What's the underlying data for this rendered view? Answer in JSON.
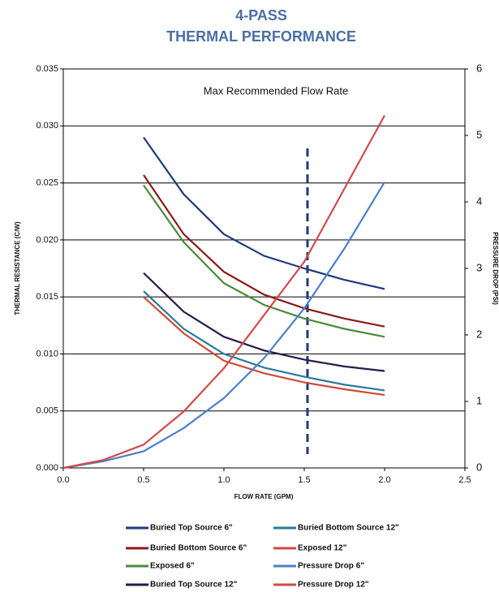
{
  "chart_data": {
    "type": "line",
    "title": "4-PASS",
    "subtitle": "THERMAL PERFORMANCE",
    "x_label": "FLOW RATE (GPM)",
    "y_label": "THERMAL RESISTANCE (C/W)",
    "y2_label": "PRESSURE DROP (PSI)",
    "annotation": "Max Recommended Flow Rate",
    "reference_x": 1.52,
    "xlim": [
      0,
      2.5
    ],
    "xticks": [
      {
        "value": 0,
        "label": "0.0"
      },
      0.5,
      {
        "value": 1,
        "label": "1.0"
      },
      1.5,
      {
        "value": 2,
        "label": "2.0"
      },
      2.5
    ],
    "ylim": [
      0,
      0.035
    ],
    "yticks": [
      {
        "value": 0,
        "label": "0.000"
      },
      0.005,
      {
        "value": 0.01,
        "label": "0.010"
      },
      0.015,
      {
        "value": 0.02,
        "label": "0.020"
      },
      0.025,
      {
        "value": 0.03,
        "label": "0.030"
      },
      0.035
    ],
    "y2lim": [
      0,
      6
    ],
    "y2ticks": [
      0,
      1,
      2,
      3,
      4,
      5,
      6
    ],
    "grid": true,
    "legend": "bottom",
    "series": [
      {
        "name": "Buried Top Source 6\"",
        "color": "#1f3a7a",
        "x": [
          0.5,
          0.75,
          1,
          1.25,
          1.5,
          1.75,
          2
        ],
        "values": [
          0.029,
          0.024,
          0.0205,
          0.0186,
          0.0175,
          0.0165,
          0.0157
        ]
      },
      {
        "name": "Buried Bottom Source 6\"",
        "color": "#8b1a1a",
        "x": [
          0.5,
          0.75,
          1,
          1.25,
          1.5,
          1.75,
          2
        ],
        "values": [
          0.0257,
          0.0205,
          0.0172,
          0.0152,
          0.014,
          0.0131,
          0.0124
        ]
      },
      {
        "name": "Exposed 6\"",
        "color": "#4a8a3a",
        "x": [
          0.5,
          0.75,
          1,
          1.25,
          1.5,
          1.75,
          2
        ],
        "values": [
          0.0248,
          0.0198,
          0.0162,
          0.0143,
          0.0131,
          0.0122,
          0.0115
        ]
      },
      {
        "name": "Buried Top Source 12\"",
        "color": "#2a1a4a",
        "x": [
          0.5,
          0.75,
          1,
          1.25,
          1.5,
          1.75,
          2
        ],
        "values": [
          0.0171,
          0.0137,
          0.0115,
          0.0103,
          0.0095,
          0.0089,
          0.0085
        ]
      },
      {
        "name": "Buried Bottom Source 12\"",
        "color": "#2a7a9a",
        "x": [
          0.5,
          0.75,
          1,
          1.25,
          1.5,
          1.75,
          2
        ],
        "values": [
          0.0155,
          0.0122,
          0.01,
          0.0088,
          0.008,
          0.0073,
          0.0068
        ]
      },
      {
        "name": "Exposed 12\"",
        "color": "#d04a3a",
        "x": [
          0.5,
          0.75,
          1,
          1.25,
          1.5,
          1.75,
          2
        ],
        "values": [
          0.015,
          0.0118,
          0.0094,
          0.0083,
          0.0075,
          0.0069,
          0.0064
        ]
      },
      {
        "name": "Pressure Drop 6\"",
        "color": "#4a80c8",
        "axis": "y2",
        "x": [
          0,
          0.25,
          0.5,
          0.75,
          1,
          1.25,
          1.5,
          1.75,
          2
        ],
        "values": [
          0,
          0.1,
          0.25,
          0.6,
          1.05,
          1.65,
          2.4,
          3.3,
          4.3
        ]
      },
      {
        "name": "Pressure Drop 12\"",
        "color": "#d04a4a",
        "axis": "y2",
        "x": [
          0,
          0.25,
          0.5,
          0.75,
          1,
          1.25,
          1.5,
          1.75,
          2
        ],
        "values": [
          0,
          0.12,
          0.35,
          0.85,
          1.5,
          2.3,
          3.1,
          4.2,
          5.3
        ]
      }
    ]
  }
}
